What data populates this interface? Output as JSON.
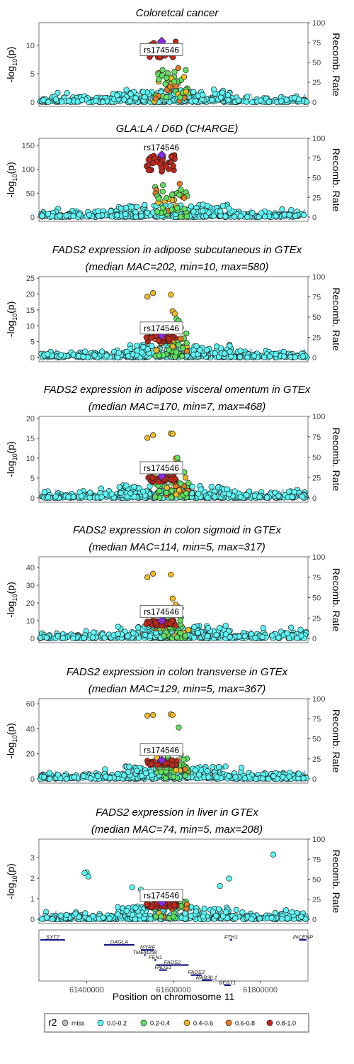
{
  "shared": {
    "y_label": "-log",
    "y_label_sub": "10",
    "y_label_p": "(p)",
    "right_label": "Recomb. Rate",
    "recomb_ticks": [
      0,
      25,
      50,
      75,
      100
    ],
    "lead_snp": "rs174546",
    "x_range": [
      61290000,
      61910000
    ]
  },
  "chart_data": [
    {
      "type": "scatter",
      "title": [
        "Coloretcal cancer"
      ],
      "ylim": [
        0,
        14
      ],
      "yticks": [
        0,
        5,
        10
      ],
      "peak": 10.7,
      "label_y": 9.2,
      "high": [],
      "gmax": 6
    },
    {
      "type": "scatter",
      "title": [
        "GLA:LA / D6D (CHARGE)"
      ],
      "ylim": [
        0,
        165
      ],
      "yticks": [
        0,
        50,
        100,
        150
      ],
      "peak": 130,
      "label_y": 146,
      "high": [],
      "gmax": 70
    },
    {
      "type": "scatter",
      "title": [
        "FADS2 expression in adipose subcutaneous in GTEx",
        "(median MAC=202, min=10, max=580)"
      ],
      "ylim": [
        0,
        25.5
      ],
      "yticks": [
        0,
        5,
        10,
        15,
        20,
        25
      ],
      "peak": 7,
      "label_y": 9.2,
      "high": [
        [
          61540000,
          19.2
        ],
        [
          61553000,
          20.3
        ],
        [
          61594000,
          19.8
        ],
        [
          61598000,
          14.6
        ],
        [
          61603000,
          13.8
        ],
        [
          61607000,
          12.2
        ],
        [
          61612000,
          11.6
        ],
        [
          61617000,
          9.4
        ]
      ],
      "gmax": 8
    },
    {
      "type": "scatter",
      "title": [
        "FADS2 expression in adipose visceral omentum in GTEx",
        "(median MAC=170, min=7, max=468)"
      ],
      "ylim": [
        0,
        20.5
      ],
      "yticks": [
        0,
        5,
        10,
        15,
        20
      ],
      "peak": 5.5,
      "label_y": 7.5,
      "high": [
        [
          61540000,
          15.1
        ],
        [
          61553000,
          15.8
        ],
        [
          61594000,
          16.2
        ],
        [
          61598000,
          16.1
        ],
        [
          61605000,
          9.9
        ],
        [
          61609000,
          10.1
        ],
        [
          61614000,
          8.7
        ]
      ],
      "gmax": 7
    },
    {
      "type": "scatter",
      "title": [
        "FADS2 expression in colon sigmoid in GTEx",
        "(median MAC=114, min=5, max=317)"
      ],
      "ylim": [
        0,
        46
      ],
      "yticks": [
        0,
        10,
        20,
        30,
        40
      ],
      "peak": 10,
      "label_y": 15,
      "high": [
        [
          61540000,
          34.5
        ],
        [
          61553000,
          36.5
        ],
        [
          61594000,
          36
        ],
        [
          61598000,
          22.5
        ],
        [
          61605000,
          19
        ],
        [
          61612000,
          17.5
        ],
        [
          61617000,
          17
        ]
      ],
      "gmax": 12
    },
    {
      "type": "scatter",
      "title": [
        "FADS2 expression in colon transverse in GTEx",
        "(median MAC=129, min=5, max=367)"
      ],
      "ylim": [
        0,
        64
      ],
      "yticks": [
        0,
        20,
        40,
        60
      ],
      "peak": 15,
      "label_y": 23,
      "high": [
        [
          61540000,
          50.5
        ],
        [
          61553000,
          51
        ],
        [
          61594000,
          51.5
        ],
        [
          61598000,
          51
        ],
        [
          61612000,
          41
        ],
        [
          61605000,
          24
        ],
        [
          61617000,
          19.5
        ]
      ],
      "gmax": 18
    },
    {
      "type": "scatter",
      "title": [
        "FADS2 expression in liver in GTEx",
        "(median MAC=74, min=5, max=208)"
      ],
      "ylim": [
        0,
        3.9
      ],
      "yticks": [
        0,
        1,
        2,
        3
      ],
      "peak": 0.8,
      "label_y": 1.15,
      "high": [
        [
          61830000,
          3.15
        ],
        [
          61728000,
          1.98
        ],
        [
          61400000,
          2.28
        ],
        [
          61395000,
          2.25
        ],
        [
          61404000,
          2.08
        ],
        [
          61505000,
          1.55
        ],
        [
          61525000,
          1.45
        ],
        [
          61707000,
          1.62
        ]
      ],
      "gmax": 1.1
    }
  ],
  "genes": [
    {
      "name": "SYT7",
      "start": 61290000,
      "end": 61350000,
      "row": 0
    },
    {
      "name": "FTH1",
      "start": 61730000,
      "end": 61735000,
      "row": 0
    },
    {
      "name": "INCENP",
      "start": 61890000,
      "end": 61925000,
      "row": 0
    },
    {
      "name": "DAGLA",
      "start": 61440000,
      "end": 61510000,
      "row": 1
    },
    {
      "name": "MYRF",
      "start": 61525000,
      "end": 61556000,
      "row": 2
    },
    {
      "name": "TMEM258",
      "start": 61532000,
      "end": 61536000,
      "row": 3
    },
    {
      "name": "FEN1",
      "start": 61556000,
      "end": 61561000,
      "row": 4
    },
    {
      "name": "FADS2",
      "start": 61560000,
      "end": 61635000,
      "row": 5
    },
    {
      "name": "FADS1",
      "start": 61567000,
      "end": 61585000,
      "row": 6
    },
    {
      "name": "FADS3",
      "start": 61640000,
      "end": 61665000,
      "row": 7
    },
    {
      "name": "RAB3IL1",
      "start": 61665000,
      "end": 61688000,
      "row": 8
    },
    {
      "name": "BEST1",
      "start": 61717000,
      "end": 61732000,
      "row": 9
    }
  ],
  "x_ticks": [
    "61400000",
    "61600000",
    "61800000"
  ],
  "x_tick_values": [
    61400000,
    61600000,
    61800000
  ],
  "x_label": "Position on chromosome 11",
  "legend": {
    "title": "r2",
    "entries": [
      {
        "label": "miss",
        "color": "#c0c0c0"
      },
      {
        "label": "0.0-0.2",
        "color": "#5ef7f7"
      },
      {
        "label": "0.2-0.4",
        "color": "#5fe15f"
      },
      {
        "label": "0.4-0.6",
        "color": "#f1ba22"
      },
      {
        "label": "0.6-0.8",
        "color": "#e77a20"
      },
      {
        "label": "0.8-1.0",
        "color": "#c2281a"
      }
    ],
    "lead_color": "#8a2be2"
  }
}
